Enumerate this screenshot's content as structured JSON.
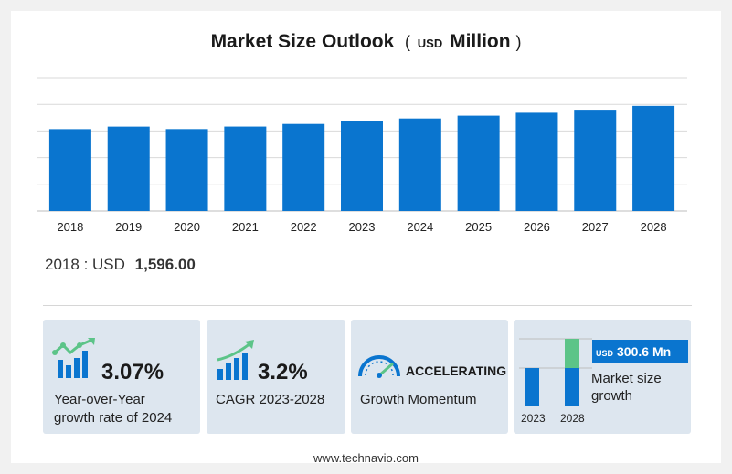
{
  "header": {
    "title_main": "Market Size Outlook",
    "title_open": "(",
    "currency": "USD",
    "title_unit": "Million",
    "title_close": ")"
  },
  "chart_data": {
    "type": "bar",
    "categories": [
      "2018",
      "2019",
      "2020",
      "2021",
      "2022",
      "2023",
      "2024",
      "2025",
      "2026",
      "2027",
      "2028"
    ],
    "values": [
      1596.0,
      1645.0,
      1597.0,
      1646.0,
      1697.0,
      1750.0,
      1804.0,
      1859.0,
      1916.0,
      1975.0,
      2050.6
    ],
    "ylim": [
      0,
      2600
    ],
    "grid": true,
    "bar_color": "#0a75cf",
    "grid_color": "#d9d9d9"
  },
  "readout": {
    "year": "2018",
    "sep": ":",
    "currency": "USD",
    "amount": "1,596.00"
  },
  "kpis": [
    {
      "value": "3.07%",
      "label_line1": "Year-over-Year",
      "label_line2": "growth rate of 2024",
      "icon": "growth-chart-icon"
    },
    {
      "value": "3.2%",
      "label_line1": "CAGR  2023-2028",
      "icon": "bar-trend-icon"
    },
    {
      "value": "ACCELERATING",
      "label_line1": "Growth Momentum",
      "icon": "speedometer-icon"
    }
  ],
  "growth_card": {
    "currency": "USD",
    "amount": "300.6 Mn",
    "label_line1": "Market size",
    "label_line2": "growth",
    "year_start": "2023",
    "year_end": "2028",
    "bar_color": "#0a75cf",
    "growth_color": "#5cc488"
  },
  "footer": {
    "url": "www.technavio.com"
  },
  "colors": {
    "card_bg": "#dde6ef",
    "accent_blue": "#0a75cf",
    "accent_green": "#5cc488"
  }
}
